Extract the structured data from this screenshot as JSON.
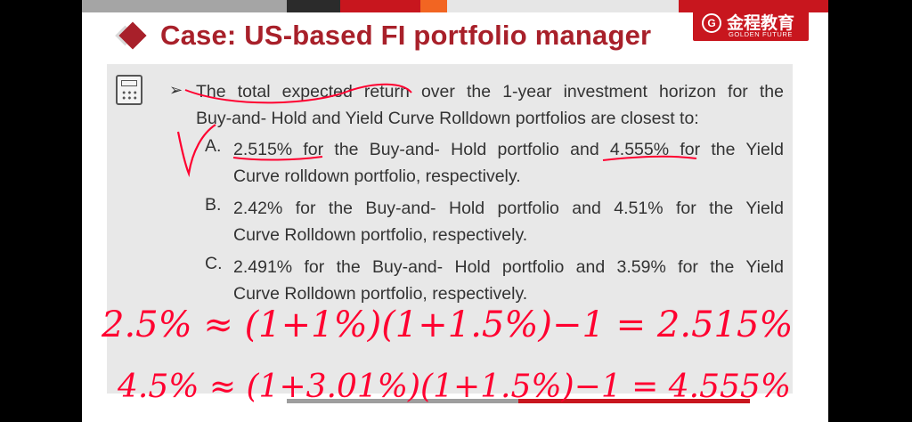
{
  "slide": {
    "title": "Case: US-based FI portfolio manager",
    "logo": {
      "emblem": "G",
      "cn_text": "金程教育",
      "en_text": "GOLDEN FUTURE"
    },
    "top_strip_colors": [
      "#9e9e9e",
      "#2b2b2b",
      "#c8161e",
      "#e0e0e0",
      "#f26522"
    ]
  },
  "question": {
    "lines": [
      "The total expected return over the 1-year investment horizon for the",
      "Buy-and- Hold and Yield Curve Rolldown portfolios are closest to:"
    ],
    "options": [
      {
        "letter": "A.",
        "lines": [
          "2.515% for the Buy-and- Hold portfolio and 4.555% for the Yield",
          "Curve rolldown portfolio, respectively."
        ]
      },
      {
        "letter": "B.",
        "lines": [
          "2.42% for the Buy-and- Hold portfolio and 4.51% for the Yield",
          "Curve Rolldown portfolio, respectively."
        ]
      },
      {
        "letter": "C.",
        "lines": [
          "2.491% for the Buy-and- Hold portfolio and 3.59% for the Yield",
          "Curve Rolldown portfolio, respectively."
        ]
      }
    ]
  },
  "handwriting": {
    "line1": "2.5% ≈ (1+1%)(1+1.5%)−1 = 2.515%",
    "line2": "4.5% ≈ (1+3.01%)(1+1.5%)−1 = 4.555%"
  }
}
